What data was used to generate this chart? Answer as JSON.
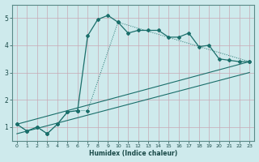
{
  "xlabel": "Humidex (Indice chaleur)",
  "background_color": "#ceeaec",
  "grid_color": "#c4b8c0",
  "line_color": "#1a6e6a",
  "xlim": [
    -0.5,
    23.5
  ],
  "ylim": [
    0.5,
    5.5
  ],
  "xticks": [
    0,
    1,
    2,
    3,
    4,
    5,
    6,
    7,
    8,
    9,
    10,
    11,
    12,
    13,
    14,
    15,
    16,
    17,
    18,
    19,
    20,
    21,
    22,
    23
  ],
  "yticks": [
    1,
    2,
    3,
    4,
    5
  ],
  "line1_x": [
    0,
    1,
    2,
    3,
    4,
    5,
    6,
    7,
    8,
    9,
    10,
    11,
    12,
    13,
    14,
    15,
    16,
    17,
    18,
    19,
    20,
    21,
    22,
    23
  ],
  "line1_y": [
    1.1,
    0.85,
    1.0,
    0.75,
    1.1,
    1.55,
    1.6,
    4.35,
    4.95,
    5.1,
    4.85,
    4.45,
    4.55,
    4.55,
    4.55,
    4.3,
    4.3,
    4.45,
    3.95,
    4.0,
    3.5,
    3.45,
    3.4,
    3.4
  ],
  "line2_x": [
    0,
    1,
    2,
    3,
    4,
    5,
    6,
    7,
    10,
    23
  ],
  "line2_y": [
    1.1,
    0.85,
    1.0,
    0.75,
    1.1,
    1.55,
    1.6,
    1.6,
    4.85,
    3.4
  ],
  "line3_x": [
    0,
    23
  ],
  "line3_y": [
    1.1,
    3.4
  ],
  "line4_x": [
    0,
    23
  ],
  "line4_y": [
    0.75,
    3.0
  ]
}
